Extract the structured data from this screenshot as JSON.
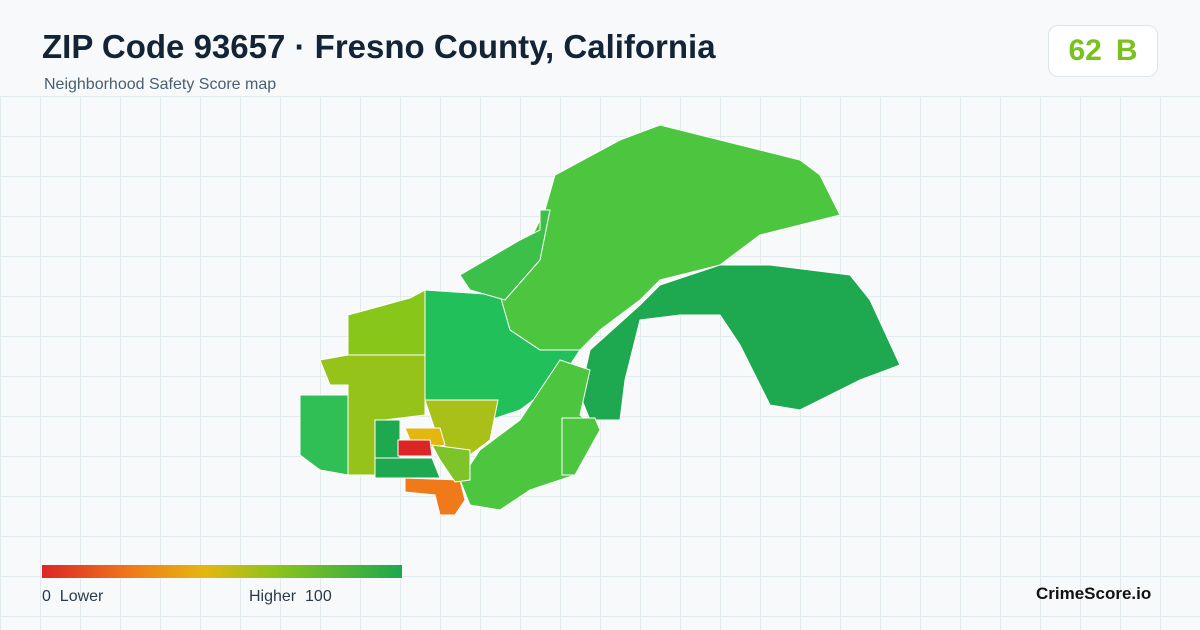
{
  "header": {
    "title": "ZIP Code 93657 · Fresno County, California",
    "subtitle": "Neighborhood Safety Score map"
  },
  "score": {
    "value": 62,
    "grade": "B"
  },
  "legend": {
    "min": 0,
    "min_label": "Lower",
    "max_label": "Higher",
    "max": 100
  },
  "brand": "CrimeScore.io"
}
